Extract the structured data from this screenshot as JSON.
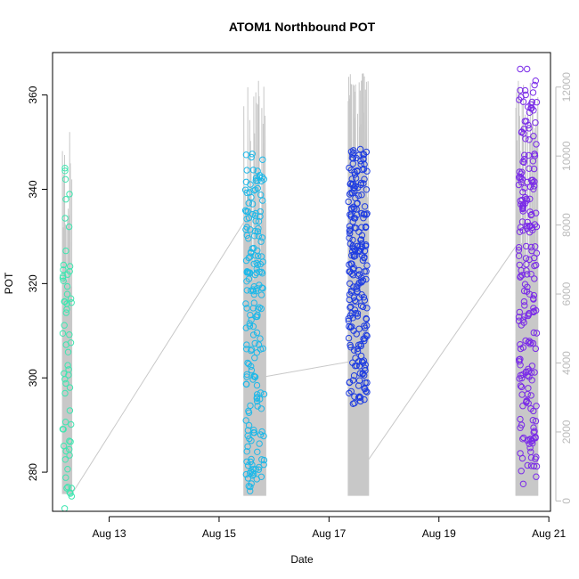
{
  "chart_data": {
    "type": "scatter",
    "title": "ATOM1 Northbound POT",
    "xlabel": "Date",
    "ylabel": "POT",
    "x_unit": "days (Aug 12 00:00 = 0)",
    "xlim": [
      11.97,
      21.03
    ],
    "ylim": [
      271.7,
      369.0
    ],
    "x_ticks": [
      {
        "value": 13,
        "label": "Aug 13"
      },
      {
        "value": 15,
        "label": "Aug 15"
      },
      {
        "value": 17,
        "label": "Aug 17"
      },
      {
        "value": 19,
        "label": "Aug 19"
      },
      {
        "value": 21,
        "label": "Aug 21"
      }
    ],
    "y_ticks": [
      280,
      300,
      320,
      340,
      360
    ],
    "y2_ticks": [
      0,
      2000,
      4000,
      6000,
      8000,
      10000,
      12000
    ],
    "y2lim": [
      -300,
      13000
    ],
    "grid": false,
    "colors": {
      "clusterA": "#3EE6B0",
      "clusterB": "#1EB8E8",
      "clusterC": "#1F3DE0",
      "clusterD": "#7A2BE8",
      "overlay": "#c8c8c8",
      "axis": "#000000",
      "axis_right": "#bbbbbb"
    },
    "clusters": [
      {
        "name": "Aug 12",
        "color": "#3EE6B0",
        "x_range": [
          12.15,
          12.32
        ],
        "y_min": 272.3,
        "y_max": 344.5,
        "n": 60,
        "seed": 11
      },
      {
        "name": "Aug 15",
        "color": "#1EB8E8",
        "x_range": [
          15.48,
          15.82
        ],
        "y_min": 276.0,
        "y_max": 347.5,
        "n": 190,
        "seed": 23
      },
      {
        "name": "Aug 17",
        "color": "#1F3DE0",
        "x_range": [
          17.35,
          17.7
        ],
        "y_min": 294.5,
        "y_max": 348.5,
        "n": 230,
        "seed": 37
      },
      {
        "name": "Aug 20",
        "color": "#7A2BE8",
        "x_range": [
          20.45,
          20.78
        ],
        "y_min": 277.5,
        "y_max": 365.5,
        "n": 220,
        "seed": 53
      }
    ],
    "secondary_series": {
      "name": "overlay",
      "color": "#c8c8c8",
      "connectors": [
        {
          "from": [
            12.32,
            200
          ],
          "to": [
            15.5,
            8200
          ]
        },
        {
          "from": [
            15.82,
            3600
          ],
          "to": [
            17.6,
            4100
          ]
        },
        {
          "from": [
            17.72,
            1200
          ],
          "to": [
            20.45,
            7500
          ]
        }
      ],
      "bursts": [
        {
          "x_range": [
            12.15,
            12.32
          ],
          "y2_min": 200,
          "y2_max": 10700,
          "n": 14,
          "seed": 71
        },
        {
          "x_range": [
            15.45,
            15.85
          ],
          "y2_min": 150,
          "y2_max": 12200,
          "n": 34,
          "seed": 83
        },
        {
          "x_range": [
            17.35,
            17.72
          ],
          "y2_min": 150,
          "y2_max": 12400,
          "n": 40,
          "seed": 97
        },
        {
          "x_range": [
            20.4,
            20.8
          ],
          "y2_min": 150,
          "y2_max": 12200,
          "n": 36,
          "seed": 109
        }
      ]
    }
  }
}
